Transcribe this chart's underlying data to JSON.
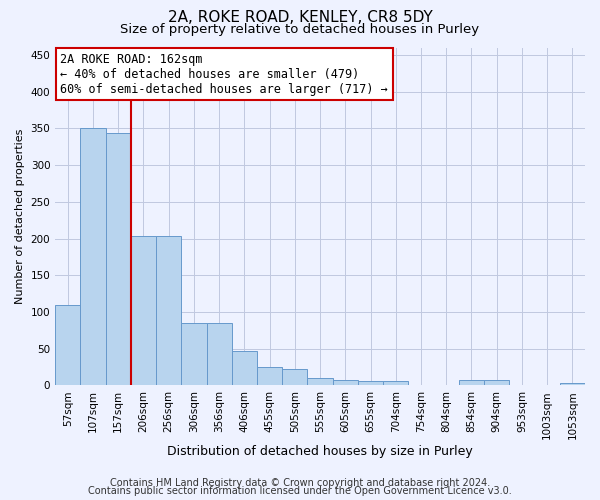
{
  "title1": "2A, ROKE ROAD, KENLEY, CR8 5DY",
  "title2": "Size of property relative to detached houses in Purley",
  "xlabel": "Distribution of detached houses by size in Purley",
  "ylabel": "Number of detached properties",
  "categories": [
    "57sqm",
    "107sqm",
    "157sqm",
    "206sqm",
    "256sqm",
    "306sqm",
    "356sqm",
    "406sqm",
    "455sqm",
    "505sqm",
    "555sqm",
    "605sqm",
    "655sqm",
    "704sqm",
    "754sqm",
    "804sqm",
    "854sqm",
    "904sqm",
    "953sqm",
    "1003sqm",
    "1053sqm"
  ],
  "values": [
    110,
    350,
    343,
    203,
    203,
    85,
    85,
    47,
    25,
    22,
    10,
    7,
    6,
    6,
    1,
    1,
    7,
    7,
    1,
    1,
    4
  ],
  "bar_color": "#b8d4ee",
  "bar_edge_color": "#6699cc",
  "vline_color": "#cc0000",
  "vline_x": 2.5,
  "annotation_line1": "2A ROKE ROAD: 162sqm",
  "annotation_line2": "← 40% of detached houses are smaller (479)",
  "annotation_line3": "60% of semi-detached houses are larger (717) →",
  "annotation_box_color": "white",
  "annotation_box_edge_color": "#cc0000",
  "ylim": [
    0,
    460
  ],
  "yticks": [
    0,
    50,
    100,
    150,
    200,
    250,
    300,
    350,
    400,
    450
  ],
  "footer1": "Contains HM Land Registry data © Crown copyright and database right 2024.",
  "footer2": "Contains public sector information licensed under the Open Government Licence v3.0.",
  "bg_color": "#eef2ff",
  "plot_bg_color": "#eef2ff",
  "grid_color": "#c0c8e0",
  "title1_fontsize": 11,
  "title2_fontsize": 9.5,
  "xlabel_fontsize": 9,
  "ylabel_fontsize": 8,
  "tick_fontsize": 7.5,
  "annot_fontsize": 8.5,
  "footer_fontsize": 7
}
